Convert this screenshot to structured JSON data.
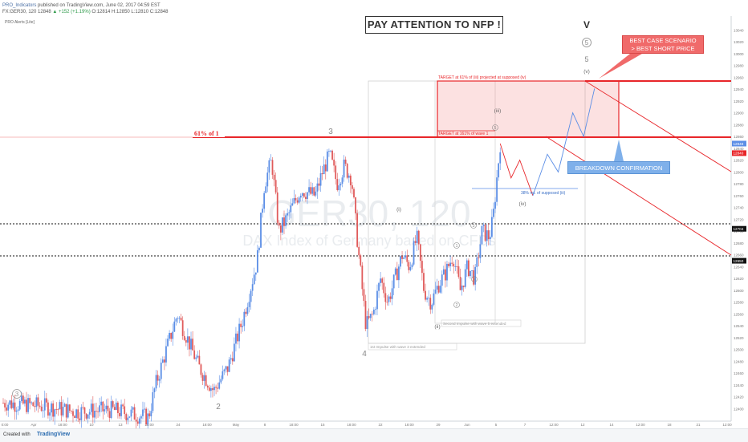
{
  "header": {
    "line1_publisher": "PRO_Indicators",
    "line1_rest": "published on TradingView.com, June 02, 2017 04:59 EST",
    "line2_symbol": "FX:GER30, 120 12848",
    "line2_change": "▲ +152 (+1.19%)",
    "line2_ohlc": "O:12814 H:12850 L:12810 C:12848"
  },
  "indicator_label": "PRO Alerts [Lite]",
  "watermark": {
    "symbol": "GER30, 120",
    "name": "DAX Index of Germany based on CFDs"
  },
  "title_box": "PAY ATTENTION TO NFP !",
  "footer": {
    "created_with": "Created with",
    "brand": "TradingView"
  },
  "annotations": {
    "fib_61": "61% of 1",
    "target_61": "TARGET at 61% of (iii) projected at supposed (iv)",
    "target_161": "TARGET at 161% of wave 1",
    "ret_38": "38% ret. of supposed (iii)",
    "impulse_1": "1st Impulse with wave 3 extended",
    "impulse_2": "Second Impulse with wave 5 extended",
    "best_case_1": "BEST CASE SCENARIO",
    "best_case_2": "> BEST SHORT PRICE",
    "breakdown": "BREAKDOWN CONFIRMATION"
  },
  "wave_labels": {
    "w3_circle": "3",
    "w2": "2",
    "w3": "3",
    "w4": "4",
    "wi": "(i)",
    "wii": "(ii)",
    "wiii": "(iii)",
    "wiv": "(iv)",
    "wv": "(v)",
    "c1": "1",
    "c2": "2",
    "c3": "3",
    "c4": "4",
    "c5": "5",
    "c5_top": "5",
    "w5_plain": "5",
    "wV": "V"
  },
  "colors": {
    "bull": "#5b8ee6",
    "bear": "#e05b5b",
    "red_line": "#e8262a",
    "target_fill": "rgba(240,120,120,0.22)",
    "callout_red": "#f06a6a",
    "callout_blue": "#7fb0ea"
  },
  "chart_data": {
    "type": "candlestick",
    "title": "",
    "price_axis_labels": [
      "13040",
      "13020",
      "13000",
      "12980",
      "12960",
      "12940",
      "12920",
      "12900",
      "12880",
      "12860",
      "12840",
      "12820",
      "12800",
      "12780",
      "12760",
      "12740",
      "12720",
      "12700",
      "12680",
      "12660",
      "12640",
      "12620",
      "12600",
      "12580",
      "12560",
      "12540",
      "12520",
      "12500",
      "12480",
      "12460",
      "12440",
      "12420",
      "12400"
    ],
    "time_axis_labels": [
      "0:00",
      "Apr",
      "18:00",
      "10",
      "13",
      "18:00",
      "24",
      "18:00",
      "May",
      "8",
      "18:00",
      "15",
      "18:00",
      "22",
      "18:00",
      "29",
      "Jun",
      "5",
      "7",
      "12:00",
      "12",
      "14",
      "12:00",
      "18",
      "21",
      "12:00"
    ],
    "ylim": [
      12383,
      13050
    ],
    "highlighted_prices": [
      {
        "value": "12848",
        "label": "12848"
      },
      {
        "value": "12840",
        "label": "12840"
      },
      {
        "value": "12704",
        "label": "12704"
      },
      {
        "value": "12650",
        "label": "12650"
      }
    ],
    "levels": {
      "fib_61": 12840,
      "target_top": 12941,
      "dotted_1": 12704,
      "dotted_2": 12650
    },
    "price_path": [
      [
        0,
        12410
      ],
      [
        0.05,
        12405
      ],
      [
        0.1,
        12395
      ],
      [
        0.15,
        12398
      ],
      [
        0.2,
        12385
      ],
      [
        0.21,
        12440
      ],
      [
        0.24,
        12560
      ],
      [
        0.27,
        12470
      ],
      [
        0.29,
        12430
      ],
      [
        0.31,
        12470
      ],
      [
        0.33,
        12550
      ],
      [
        0.35,
        12650
      ],
      [
        0.36,
        12780
      ],
      [
        0.37,
        12820
      ],
      [
        0.38,
        12700
      ],
      [
        0.39,
        12720
      ],
      [
        0.41,
        12770
      ],
      [
        0.43,
        12760
      ],
      [
        0.44,
        12800
      ],
      [
        0.45,
        12830
      ],
      [
        0.46,
        12780
      ],
      [
        0.47,
        12810
      ],
      [
        0.48,
        12790
      ],
      [
        0.49,
        12660
      ],
      [
        0.5,
        12540
      ],
      [
        0.51,
        12560
      ],
      [
        0.52,
        12620
      ],
      [
        0.53,
        12580
      ],
      [
        0.55,
        12660
      ],
      [
        0.56,
        12640
      ],
      [
        0.57,
        12690
      ],
      [
        0.58,
        12600
      ],
      [
        0.59,
        12580
      ],
      [
        0.6,
        12610
      ],
      [
        0.61,
        12630
      ],
      [
        0.62,
        12660
      ],
      [
        0.63,
        12600
      ],
      [
        0.64,
        12640
      ],
      [
        0.65,
        12620
      ],
      [
        0.66,
        12700
      ],
      [
        0.67,
        12690
      ],
      [
        0.675,
        12720
      ],
      [
        0.685,
        12848
      ]
    ],
    "projection_red": [
      [
        0.685,
        12848
      ],
      [
        0.7,
        12790
      ],
      [
        0.712,
        12820
      ],
      [
        0.73,
        12760
      ]
    ],
    "projection_blue": [
      [
        0.73,
        12760
      ],
      [
        0.75,
        12830
      ],
      [
        0.765,
        12800
      ],
      [
        0.785,
        12900
      ],
      [
        0.8,
        12860
      ],
      [
        0.815,
        12941
      ]
    ]
  }
}
